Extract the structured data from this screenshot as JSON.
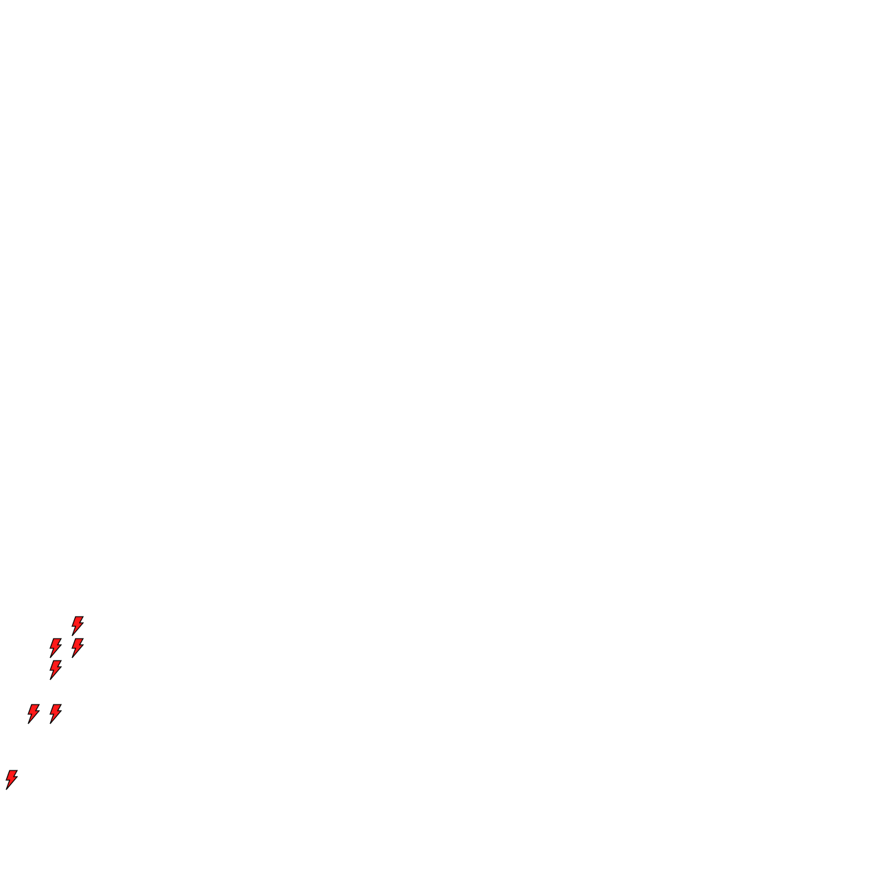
{
  "background_color": "#ffffff",
  "markers": {
    "icon": "lightning-bolt-icon",
    "fill_color": "#ff1a1a",
    "stroke_color": "#000000",
    "count": 7
  }
}
